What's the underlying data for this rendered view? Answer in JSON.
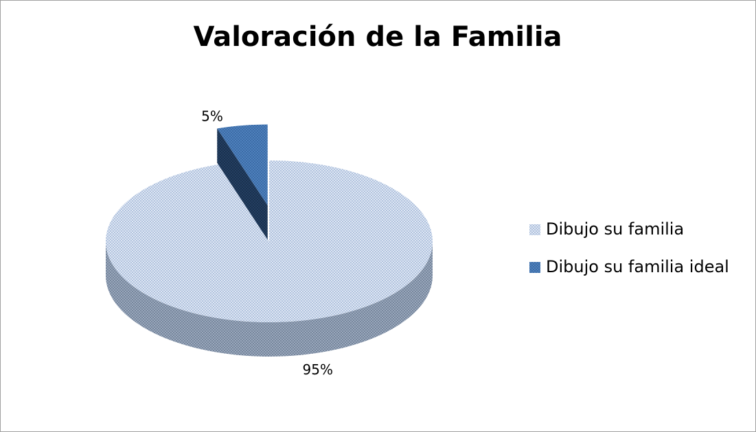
{
  "chart_data": {
    "type": "pie",
    "title": "Valoración de la Familia",
    "categories": [
      "Dibujo su familia",
      "Dibujo su familia ideal"
    ],
    "values": [
      95,
      5
    ],
    "value_labels": [
      "95%",
      "5%"
    ],
    "colors": [
      "#c3d3ea",
      "#4f81bd"
    ],
    "legend": "right"
  }
}
